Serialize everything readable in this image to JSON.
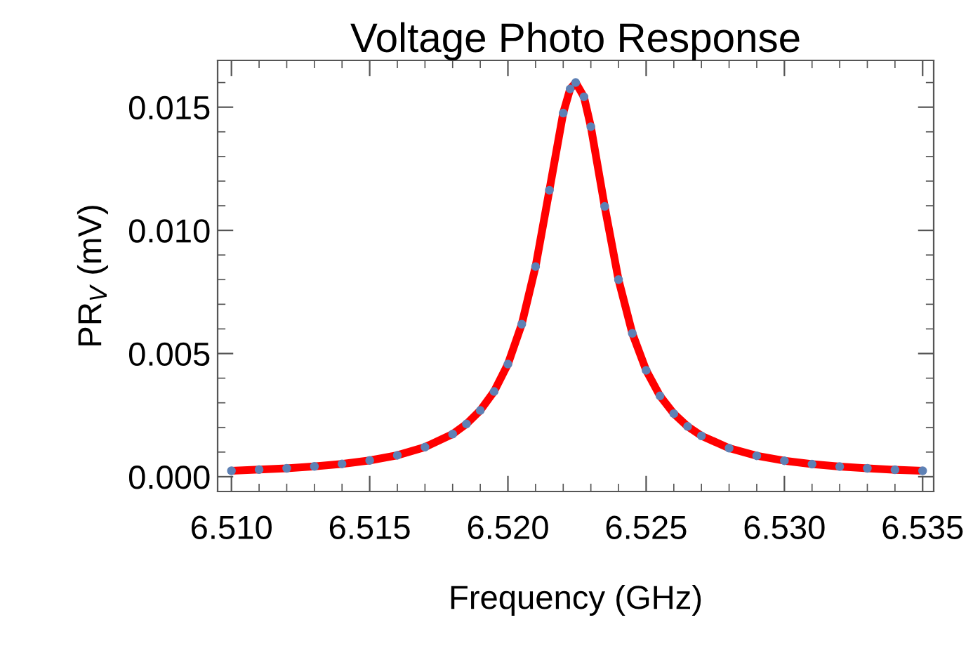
{
  "chart_data": {
    "type": "line",
    "title": "Voltage Photo Response",
    "xlabel": "Frequency (GHz)",
    "ylabel": "PR$_{V}$ (mV)",
    "x": [
      6.51,
      6.511,
      6.512,
      6.513,
      6.514,
      6.515,
      6.516,
      6.517,
      6.518,
      6.5185,
      6.519,
      6.5195,
      6.52,
      6.5205,
      6.521,
      6.5215,
      6.522,
      6.52225,
      6.52245,
      6.52275,
      6.523,
      6.5235,
      6.524,
      6.5245,
      6.525,
      6.5255,
      6.526,
      6.5265,
      6.527,
      6.528,
      6.529,
      6.53,
      6.531,
      6.532,
      6.533,
      6.534,
      6.535
    ],
    "series": [
      {
        "color": "#ff0000",
        "values": [
          0.00024,
          0.00029,
          0.00034,
          0.00042,
          0.00052,
          0.00066,
          0.00087,
          0.0012,
          0.00173,
          0.00214,
          0.00269,
          0.00346,
          0.00457,
          0.00619,
          0.00853,
          0.01163,
          0.01476,
          0.01574,
          0.016,
          0.01542,
          0.01421,
          0.01097,
          0.008,
          0.00582,
          0.00432,
          0.00328,
          0.00256,
          0.00204,
          0.00166,
          0.00116,
          0.00085,
          0.00065,
          0.00051,
          0.00041,
          0.00034,
          0.00028,
          0.00024
        ]
      },
      {
        "type": "scatter",
        "color": "#5e81b5",
        "marker": "circle",
        "values": [
          0.00024,
          0.00029,
          0.00034,
          0.00042,
          0.00052,
          0.00066,
          0.00087,
          0.0012,
          0.00173,
          0.00214,
          0.00269,
          0.00346,
          0.00457,
          0.00619,
          0.00853,
          0.01163,
          0.01476,
          0.01574,
          0.016,
          0.01542,
          0.01421,
          0.01097,
          0.008,
          0.00582,
          0.00432,
          0.00328,
          0.00256,
          0.00204,
          0.00166,
          0.00116,
          0.00085,
          0.00065,
          0.00051,
          0.00041,
          0.00034,
          0.00028,
          0.00024
        ]
      }
    ],
    "xlim": [
      6.5095,
      6.5354
    ],
    "ylim": [
      -0.0006,
      0.0169
    ],
    "xticks": [
      {
        "value": 6.51,
        "label": "6.510"
      },
      {
        "value": 6.515,
        "label": "6.515"
      },
      {
        "value": 6.52,
        "label": "6.520"
      },
      {
        "value": 6.525,
        "label": "6.525"
      },
      {
        "value": 6.53,
        "label": "6.530"
      },
      {
        "value": 6.535,
        "label": "6.535"
      }
    ],
    "yticks": [
      {
        "value": 0,
        "label": "0.000"
      },
      {
        "value": 0.005,
        "label": "0.005"
      },
      {
        "value": 0.01,
        "label": "0.010"
      },
      {
        "value": 0.015,
        "label": "0.015"
      }
    ],
    "grid": false,
    "legend": false
  }
}
